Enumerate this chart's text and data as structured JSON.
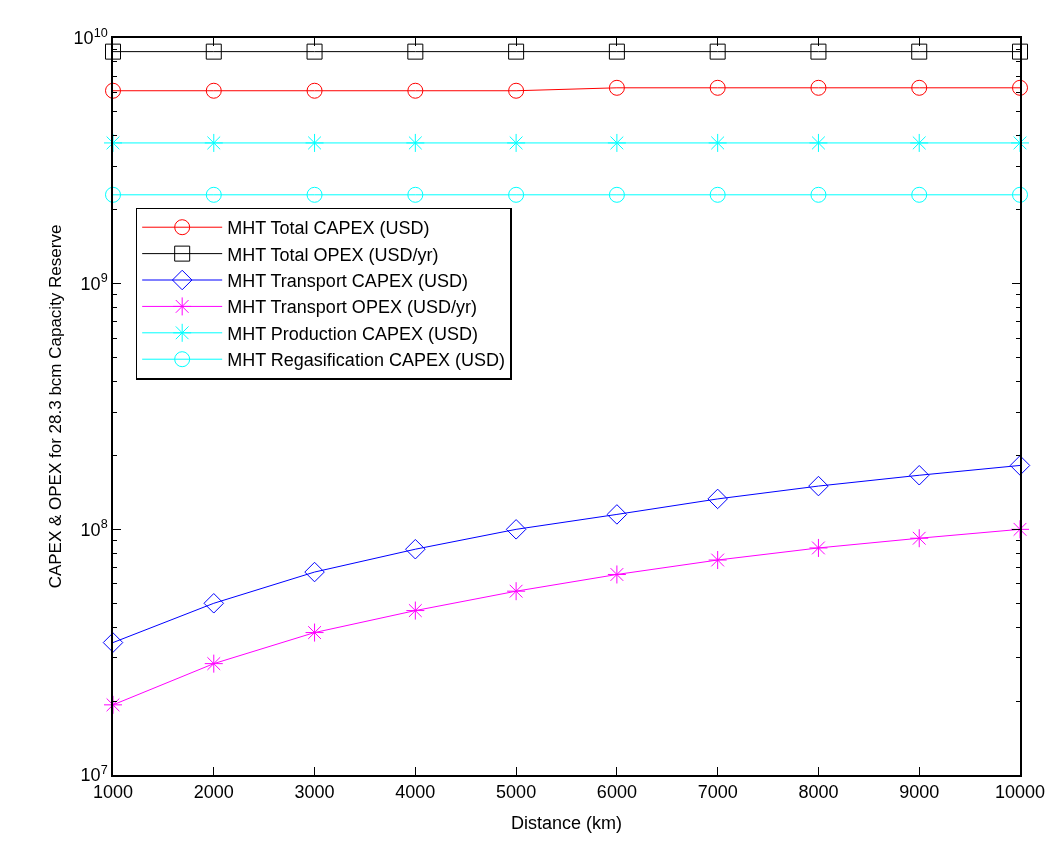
{
  "chart_data": {
    "type": "line",
    "xlabel": "Distance (km)",
    "ylabel": "CAPEX & OPEX for 28.3 bcm Capacity Reserve",
    "x": [
      1000,
      2000,
      3000,
      4000,
      5000,
      6000,
      7000,
      8000,
      9000,
      10000
    ],
    "series": [
      {
        "name": "MHT Total CAPEX (USD)",
        "color": "#ff0000",
        "marker": "circle",
        "values": [
          6100000000.0,
          6100000000.0,
          6100000000.0,
          6100000000.0,
          6100000000.0,
          6270000000.0,
          6270000000.0,
          6270000000.0,
          6270000000.0,
          6270000000.0
        ]
      },
      {
        "name": "MHT Total OPEX (USD/yr)",
        "color": "#000000",
        "marker": "square",
        "values": [
          8800000000.0,
          8800000000.0,
          8800000000.0,
          8800000000.0,
          8800000000.0,
          8800000000.0,
          8800000000.0,
          8800000000.0,
          8800000000.0,
          8800000000.0
        ]
      },
      {
        "name": "MHT Transport CAPEX (USD)",
        "color": "#0000ff",
        "marker": "diamond",
        "values": [
          34600000.0,
          50000000.0,
          67000000.0,
          83000000.0,
          100000000.0,
          115000000.0,
          133000000.0,
          150000000.0,
          166000000.0,
          182000000.0
        ]
      },
      {
        "name": "MHT Transport OPEX (USD/yr)",
        "color": "#ff00ff",
        "marker": "cross",
        "values": [
          19300000.0,
          28400000.0,
          38000000.0,
          46700000.0,
          56000000.0,
          65500000.0,
          75000000.0,
          84000000.0,
          92000000.0,
          100000000.0
        ]
      },
      {
        "name": "MHT Production CAPEX (USD)",
        "color": "#00ffff",
        "marker": "cross",
        "values": [
          3740000000.0,
          3740000000.0,
          3740000000.0,
          3740000000.0,
          3740000000.0,
          3740000000.0,
          3740000000.0,
          3740000000.0,
          3740000000.0,
          3740000000.0
        ]
      },
      {
        "name": "MHT Regasification CAPEX (USD)",
        "color": "#00ffff",
        "marker": "circle",
        "values": [
          2300000000.0,
          2300000000.0,
          2300000000.0,
          2300000000.0,
          2300000000.0,
          2300000000.0,
          2300000000.0,
          2300000000.0,
          2300000000.0,
          2300000000.0
        ]
      }
    ],
    "log": "y",
    "xlim": [
      1000,
      10000
    ],
    "xticks": [
      1000,
      2000,
      3000,
      4000,
      5000,
      6000,
      7000,
      8000,
      9000,
      10000
    ],
    "ylim": [
      10000000.0,
      10000000000.0
    ],
    "yticks": [
      {
        "value": 10000000.0,
        "label": "10$^{7}$"
      },
      {
        "value": 100000000.0,
        "label": "10$^{8}$"
      },
      {
        "value": 1000000000.0,
        "label": "10$^{9}$"
      },
      {
        "value": 10000000000.0,
        "label": "10$^{10}$"
      }
    ],
    "legend": "top left",
    "line_style": "solid"
  }
}
